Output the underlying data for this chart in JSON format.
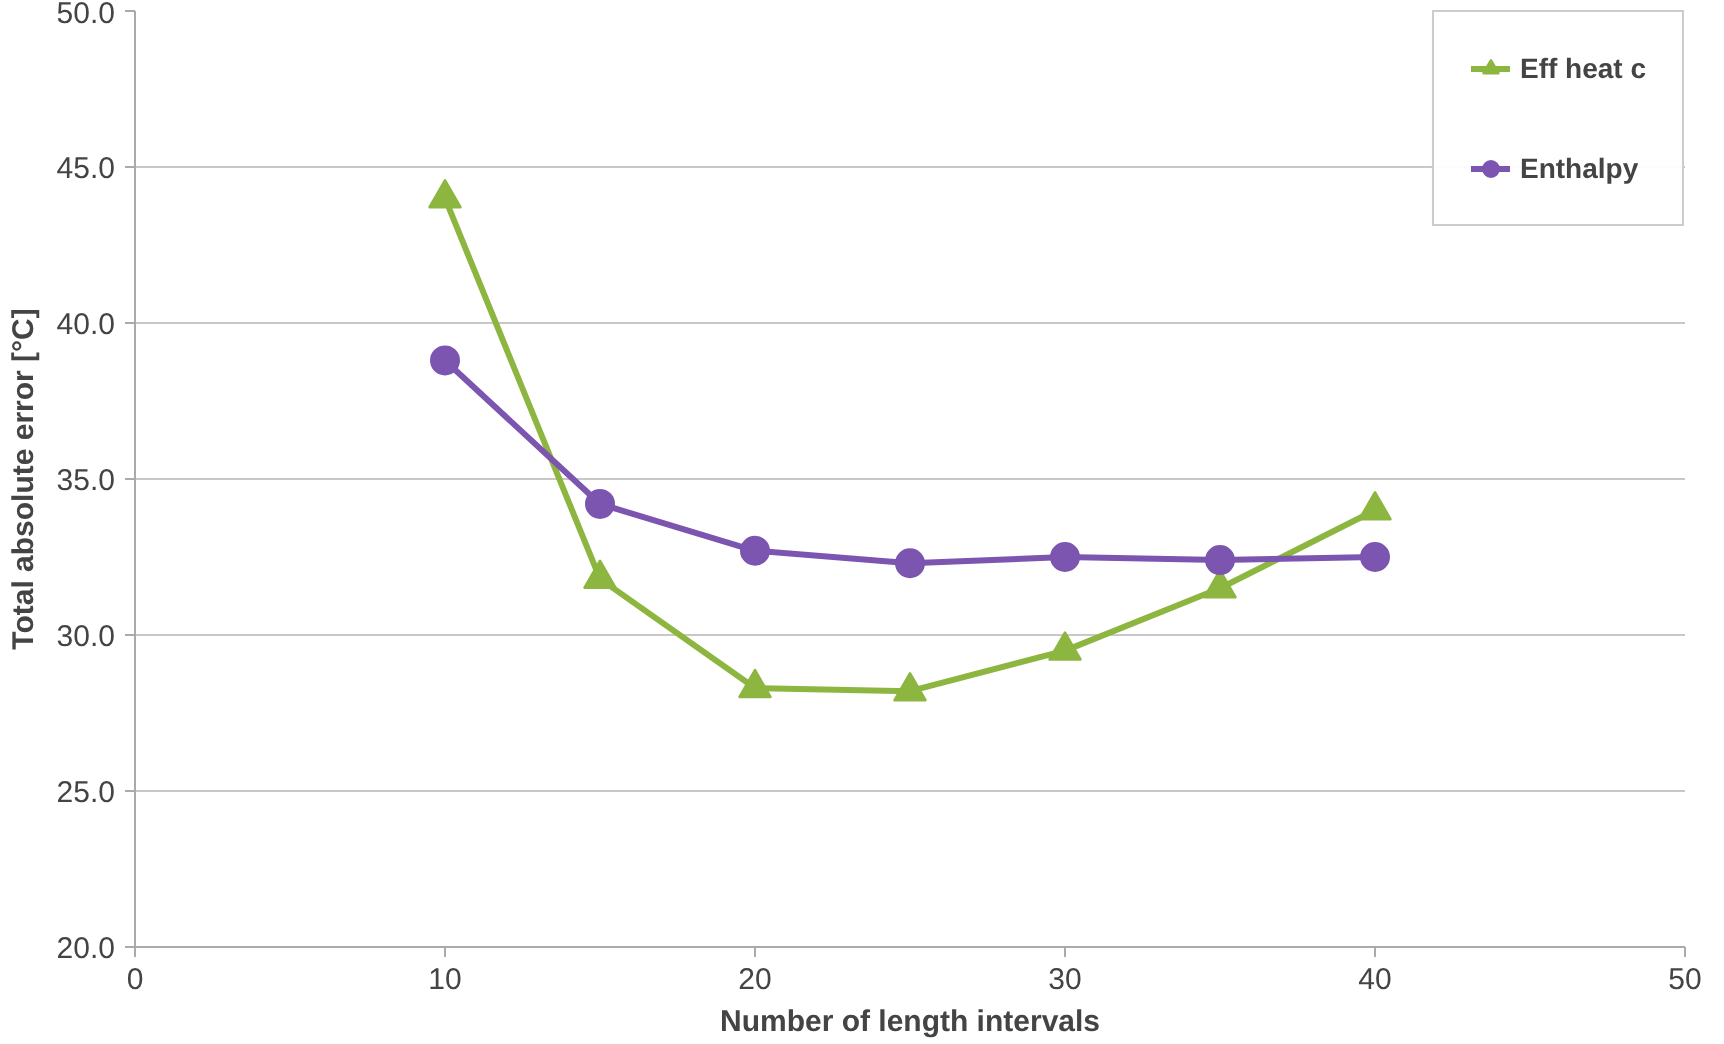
{
  "chart_data": {
    "type": "line",
    "xlabel": "Number of length intervals",
    "ylabel": "Total absolute error [°C]",
    "x": [
      10,
      15,
      20,
      25,
      30,
      35,
      40
    ],
    "series": [
      {
        "name": "Eff heat c",
        "color": "#8db640",
        "marker": "triangle",
        "values": [
          44.0,
          31.8,
          28.3,
          28.2,
          29.5,
          31.5,
          34.0
        ]
      },
      {
        "name": "Enthalpy",
        "color": "#7b55b0",
        "marker": "circle",
        "values": [
          38.8,
          34.2,
          32.7,
          32.3,
          32.5,
          32.4,
          32.5
        ]
      }
    ],
    "xlim": [
      0,
      50
    ],
    "xticks": [
      0,
      10,
      20,
      30,
      40,
      50
    ],
    "ylim": [
      20,
      50
    ],
    "yticks": [
      {
        "value": 20,
        "label": "20.0"
      },
      {
        "value": 25,
        "label": "25.0"
      },
      {
        "value": 30,
        "label": "30.0"
      },
      {
        "value": 35,
        "label": "35.0"
      },
      {
        "value": 40,
        "label": "40.0"
      },
      {
        "value": 45,
        "label": "45.0"
      },
      {
        "value": 50,
        "label": "50.0"
      }
    ],
    "grid": "y",
    "legend": "top right",
    "line_style": "solid"
  }
}
